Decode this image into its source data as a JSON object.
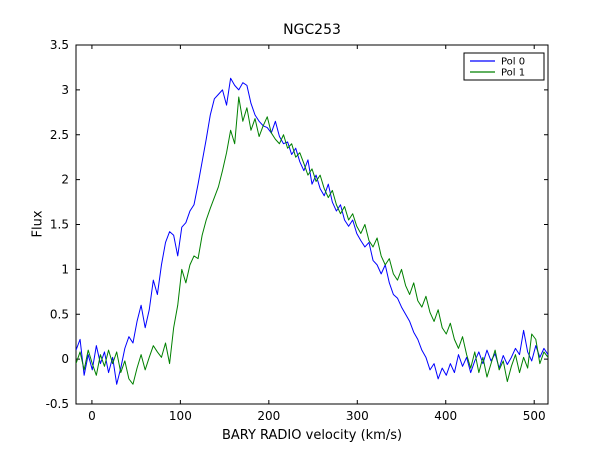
{
  "figure": {
    "title": "NGC253",
    "xlabel": "BARY RADIO velocity (km/s)",
    "ylabel": "Flux",
    "background_color": "#ffffff",
    "axes_color": "#000000"
  },
  "chart_data": {
    "type": "line",
    "title": "NGC253",
    "xlabel": "BARY RADIO velocity (km/s)",
    "ylabel": "Flux",
    "xlim": [
      -18,
      515.6
    ],
    "ylim": [
      -0.5,
      3.5
    ],
    "x_ticks": [
      0,
      100,
      200,
      300,
      400,
      500
    ],
    "x_tick_labels": [
      "0",
      "100",
      "200",
      "300",
      "400",
      "500"
    ],
    "y_ticks": [
      -0.5,
      0,
      0.5,
      1,
      1.5,
      2,
      2.5,
      3,
      3.5
    ],
    "y_tick_labels": [
      "-0.5",
      "0",
      "0.5",
      "1",
      "1.5",
      "2",
      "2.5",
      "3",
      "3.5"
    ],
    "grid": false,
    "legend": {
      "position": "upper right",
      "entries": [
        "Pol 0",
        "Pol 1"
      ]
    },
    "x_start": -18,
    "x_step": 4.6,
    "series": [
      {
        "name": "Pol 0",
        "color": "#0000ff",
        "values": [
          0.1,
          0.22,
          -0.18,
          0.05,
          -0.12,
          0.15,
          -0.05,
          0.08,
          -0.15,
          0.02,
          -0.28,
          -0.1,
          0.12,
          0.25,
          0.18,
          0.42,
          0.6,
          0.35,
          0.55,
          0.88,
          0.72,
          1.05,
          1.3,
          1.42,
          1.38,
          1.15,
          1.47,
          1.52,
          1.65,
          1.72,
          1.95,
          2.2,
          2.45,
          2.72,
          2.9,
          2.95,
          3.0,
          2.83,
          3.13,
          3.05,
          3.0,
          3.08,
          3.05,
          2.85,
          2.72,
          2.65,
          2.6,
          2.58,
          2.52,
          2.65,
          2.48,
          2.4,
          2.42,
          2.28,
          2.35,
          2.2,
          2.1,
          2.22,
          1.95,
          2.05,
          1.9,
          1.82,
          1.95,
          1.75,
          1.65,
          1.72,
          1.55,
          1.48,
          1.55,
          1.4,
          1.32,
          1.25,
          1.3,
          1.1,
          1.05,
          0.95,
          1.05,
          0.85,
          0.72,
          0.68,
          0.58,
          0.5,
          0.42,
          0.3,
          0.22,
          0.1,
          0.02,
          -0.12,
          -0.05,
          -0.22,
          -0.1,
          -0.18,
          -0.05,
          -0.15,
          0.05,
          -0.08,
          0.02,
          -0.15,
          -0.02,
          0.08,
          -0.05,
          0.1,
          -0.02,
          0.06,
          -0.1,
          0.04,
          -0.06,
          0.02,
          0.12,
          0.05,
          0.32,
          0.08,
          -0.02,
          0.15,
          0.02,
          0.12,
          0.05
        ]
      },
      {
        "name": "Pol 1",
        "color": "#008000",
        "values": [
          -0.05,
          0.08,
          -0.12,
          0.1,
          -0.05,
          -0.18,
          0.05,
          -0.08,
          0.1,
          -0.05,
          0.08,
          -0.15,
          -0.02,
          -0.22,
          -0.28,
          -0.1,
          0.05,
          -0.12,
          0.02,
          0.15,
          0.08,
          0.02,
          0.18,
          -0.05,
          0.35,
          0.6,
          1.0,
          0.85,
          1.05,
          1.15,
          1.12,
          1.38,
          1.55,
          1.68,
          1.8,
          1.92,
          2.1,
          2.3,
          2.55,
          2.4,
          2.92,
          2.65,
          2.8,
          2.55,
          2.68,
          2.48,
          2.6,
          2.7,
          2.52,
          2.45,
          2.4,
          2.5,
          2.35,
          2.4,
          2.25,
          2.3,
          2.18,
          2.05,
          2.12,
          1.98,
          2.05,
          1.9,
          1.8,
          1.88,
          1.72,
          1.62,
          1.7,
          1.55,
          1.62,
          1.48,
          1.4,
          1.5,
          1.32,
          1.25,
          1.35,
          1.15,
          1.05,
          1.12,
          0.95,
          0.88,
          1.0,
          0.82,
          0.72,
          0.85,
          0.65,
          0.58,
          0.7,
          0.52,
          0.42,
          0.55,
          0.35,
          0.28,
          0.4,
          0.22,
          0.12,
          0.25,
          0.05,
          -0.1,
          0.08,
          -0.15,
          0.02,
          -0.2,
          -0.05,
          0.1,
          -0.12,
          -0.02,
          -0.25,
          -0.08,
          0.05,
          -0.15,
          0.02,
          -0.1,
          0.28,
          0.22,
          -0.05,
          0.08,
          0.02
        ]
      }
    ]
  }
}
